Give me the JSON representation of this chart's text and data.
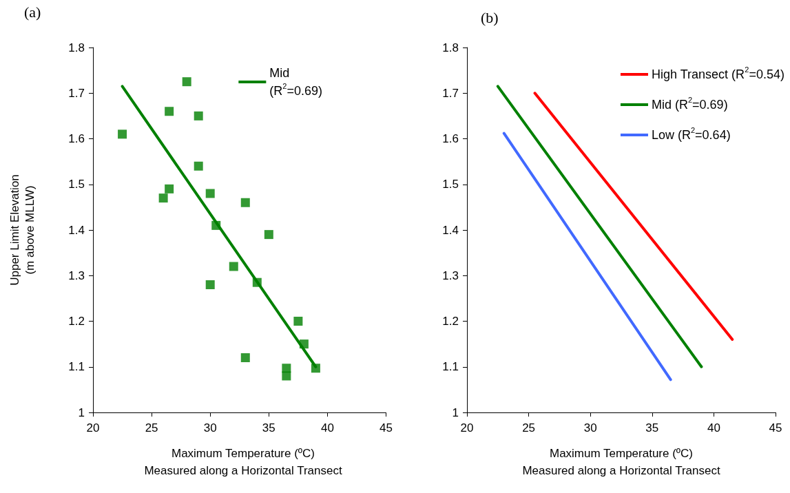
{
  "chart_data": [
    {
      "type": "scatter",
      "title": "(a)",
      "xlabel": "Maximum Temperature (ºC)\nMeasured along a Horizontal Transect",
      "ylabel": "Upper Limit Elevation\n(m above MLLW)",
      "xlim": [
        20,
        45
      ],
      "xticks": [
        20,
        25,
        30,
        35,
        40,
        45
      ],
      "ylim": [
        1,
        1.8
      ],
      "yticks": [
        1,
        1.1,
        1.2,
        1.3,
        1.4,
        1.5,
        1.6,
        1.7,
        1.8
      ],
      "grid": false,
      "legend": "top right",
      "series": [
        {
          "marker": "square",
          "color": "#008000",
          "x": [
            22.5,
            26,
            26.5,
            26.5,
            28,
            29,
            29,
            30,
            30,
            30.5,
            32,
            33,
            33,
            34,
            35,
            36.5,
            36.5,
            37.5,
            38,
            39
          ],
          "values": [
            1.61,
            1.47,
            1.49,
            1.66,
            1.725,
            1.65,
            1.54,
            1.48,
            1.28,
            1.41,
            1.32,
            1.46,
            1.12,
            1.285,
            1.39,
            1.097,
            1.08,
            1.2,
            1.15,
            1.097
          ]
        },
        {
          "type": "line",
          "name": "Mid (R$^{2}$=0.69)",
          "color": "#008000",
          "x": [
            22.5,
            39
          ],
          "values": [
            1.715,
            1.1
          ]
        }
      ]
    },
    {
      "type": "line",
      "title": "(b)",
      "xlabel": "Maximum Temperature (ºC)\nMeasured along a Horizontal Transect",
      "xlim": [
        20,
        45
      ],
      "xticks": [
        20,
        25,
        30,
        35,
        40,
        45
      ],
      "ylim": [
        1,
        1.8
      ],
      "yticks": [
        1,
        1.1,
        1.2,
        1.3,
        1.4,
        1.5,
        1.6,
        1.7,
        1.8
      ],
      "grid": false,
      "legend": "top right",
      "series": [
        {
          "name": "High Transect (R$^{2}$=0.54)",
          "color": "#ff0000",
          "x": [
            25.5,
            41.5
          ],
          "values": [
            1.7,
            1.16
          ]
        },
        {
          "name": "Mid (R$^{2}$=0.69)",
          "color": "#008000",
          "x": [
            22.5,
            39
          ],
          "values": [
            1.715,
            1.1
          ]
        },
        {
          "name": "Low (R$^{2}$=0.64)",
          "color": "#4169ff",
          "x": [
            23,
            36.5
          ],
          "values": [
            1.612,
            1.072
          ]
        }
      ]
    }
  ]
}
